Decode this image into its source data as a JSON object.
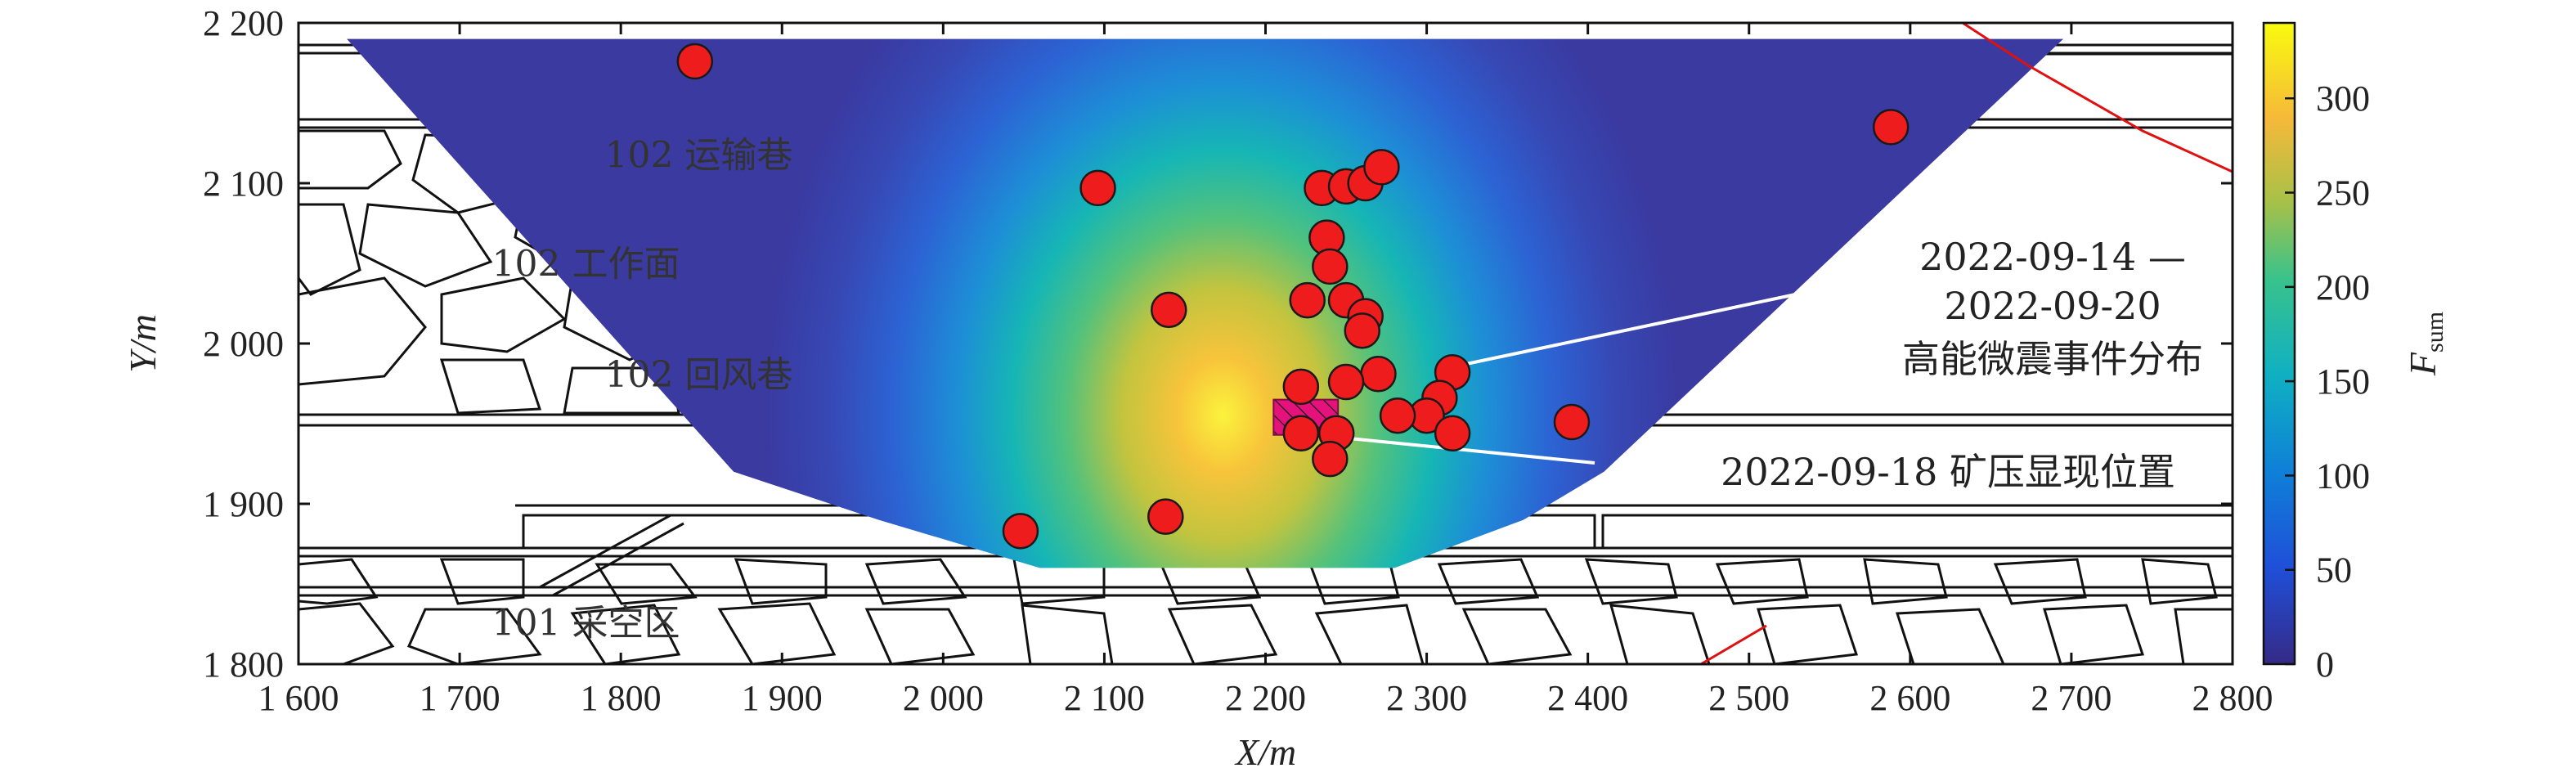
{
  "chart_data": {
    "type": "heatmap",
    "title": "",
    "xlabel": "X/m",
    "ylabel": "Y/m",
    "xlim": [
      1600,
      2800
    ],
    "ylim": [
      1800,
      2200
    ],
    "x_ticks": [
      1600,
      1700,
      1800,
      1900,
      2000,
      2100,
      2200,
      2300,
      2400,
      2500,
      2600,
      2700,
      2800
    ],
    "y_ticks": [
      1800,
      1900,
      2000,
      2100,
      2200
    ],
    "x_tick_labels": [
      "1 600",
      "1 700",
      "1 800",
      "1 900",
      "2 000",
      "2 100",
      "2 200",
      "2 300",
      "2 400",
      "2 500",
      "2 600",
      "2 700",
      "2 800"
    ],
    "y_tick_labels": [
      "1 800",
      "1 900",
      "2 000",
      "2 100",
      "2 200"
    ],
    "colorbar": {
      "label_main": "F",
      "label_sub": "sum",
      "range": [
        0,
        340
      ],
      "ticks": [
        0,
        50,
        100,
        150,
        200,
        250,
        300
      ],
      "tick_labels": [
        "0",
        "50",
        "100",
        "150",
        "200",
        "250",
        "300"
      ]
    },
    "heat_peak": {
      "x": 2225,
      "y": 1955,
      "value": 340
    },
    "heat_region": [
      [
        1630,
        2190
      ],
      [
        2695,
        2190
      ],
      [
        2410,
        1920
      ],
      [
        2360,
        1890
      ],
      [
        2280,
        1860
      ],
      [
        2060,
        1860
      ],
      [
        1960,
        1890
      ],
      [
        1870,
        1920
      ]
    ],
    "regions": [
      {
        "name": "102 运输巷",
        "x": 1790,
        "y": 2110
      },
      {
        "name": "102 工作面",
        "x": 1720,
        "y": 2042
      },
      {
        "name": "102 回风巷",
        "x": 1790,
        "y": 1973
      },
      {
        "name": "101 采空区",
        "x": 1720,
        "y": 1818
      }
    ],
    "events_label_line1": "2022-09-14 —",
    "events_label_line2": "2022-09-20",
    "events_label_line3": "高能微震事件分布",
    "pressure_label": "2022-09-18 矿压显现位置",
    "pressure_zone": {
      "x": [
        2205,
        2245
      ],
      "y": [
        1943,
        1965
      ]
    },
    "events": [
      [
        1846,
        2176
      ],
      [
        2096,
        2097
      ],
      [
        2140,
        2021
      ],
      [
        2588,
        2135
      ],
      [
        2235,
        2097
      ],
      [
        2250,
        2098
      ],
      [
        2262,
        2100
      ],
      [
        2272,
        2110
      ],
      [
        2238,
        2066
      ],
      [
        2240,
        2048
      ],
      [
        2250,
        2027
      ],
      [
        2226,
        2027
      ],
      [
        2262,
        2017
      ],
      [
        2260,
        2008
      ],
      [
        2270,
        1981
      ],
      [
        2250,
        1976
      ],
      [
        2222,
        1973
      ],
      [
        2316,
        1982
      ],
      [
        2308,
        1966
      ],
      [
        2300,
        1955
      ],
      [
        2282,
        1955
      ],
      [
        2316,
        1944
      ],
      [
        2244,
        1944
      ],
      [
        2240,
        1928
      ],
      [
        2222,
        1944
      ],
      [
        2390,
        1951
      ],
      [
        2048,
        1883
      ],
      [
        2138,
        1892
      ]
    ],
    "colors": {
      "event_fill": "#ee1c1c",
      "pressure_fill": "#e4127a",
      "fault_line": "#e01010",
      "annotation_line": "#ffffff"
    }
  }
}
